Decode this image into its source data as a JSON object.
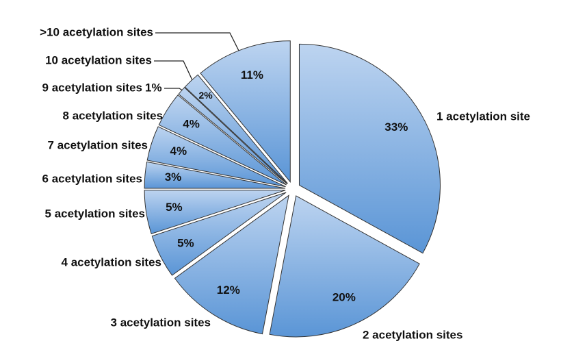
{
  "chart_data": {
    "type": "pie",
    "categories": [
      "1 acetylation site",
      "2 acetylation sites",
      "3 acetylation sites",
      "4 acetylation sites",
      "5 acetylation sites",
      "6 acetylation sites",
      "7 acetylation sites",
      "8 acetylation sites",
      "9 acetylation sites",
      "10 acetylation sites",
      ">10 acetylation sites"
    ],
    "values": [
      33,
      20,
      12,
      5,
      5,
      3,
      4,
      4,
      1,
      2,
      11
    ],
    "value_labels": [
      "33%",
      "20%",
      "12%",
      "5%",
      "5%",
      "3%",
      "4%",
      "4%",
      "1%",
      "2%",
      "11%"
    ],
    "colors": [
      "#bdd4f0",
      "#5a95d6"
    ]
  }
}
